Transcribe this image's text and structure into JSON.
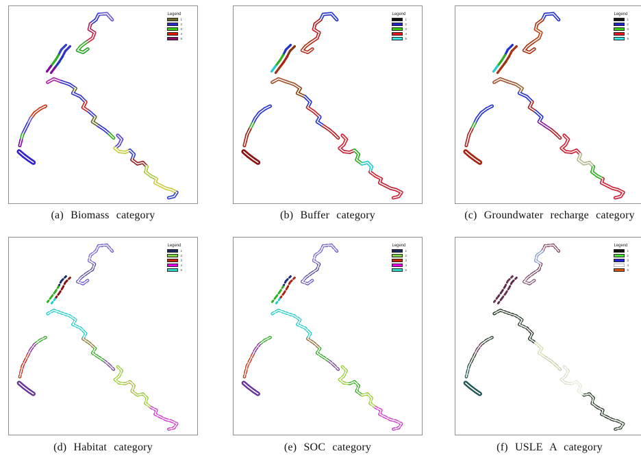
{
  "figure": {
    "panels": [
      {
        "id": "a",
        "caption": "(a) Biomass category",
        "legend": {
          "title": "Legend",
          "entries": [
            {
              "color": "#6b682a",
              "label": "1"
            },
            {
              "color": "#2a2acc",
              "label": "2"
            },
            {
              "color": "#33cc00",
              "label": "3"
            },
            {
              "color": "#ee1100",
              "label": "4"
            },
            {
              "color": "#8e0e63",
              "label": "5"
            }
          ]
        },
        "style": {
          "corridor_width": 5,
          "core_width": 1.6,
          "dash": "5 2",
          "tail_width": 7,
          "bank_width": 3.4
        },
        "streams": {
          "north": [
            "#6a5acd",
            "#3333cc",
            "#aa2255",
            "#cc2244",
            "#2fae22",
            "#27a322"
          ],
          "nw_left": [
            "#3344cc",
            "#2fae22",
            "#2fae22",
            "#7a0f9e"
          ],
          "nw_right": [
            "#3333cc",
            "#2233bb",
            "#7a0f9e"
          ],
          "central": [
            "#aa22aa",
            "#3333cc",
            "#6b6b23",
            "#3333cc",
            "#cc2222",
            "#3333cc",
            "#6b6b23",
            "#3333cc",
            "#2fae22"
          ],
          "west": [
            "#cc3311",
            "#cc3311",
            "#6a5acd",
            "#3333cc",
            "#2fae22",
            "#8800aa"
          ],
          "west_tail": [
            "#3322cc"
          ],
          "se": [
            "#5544cc",
            "#cccc44",
            "#3344cc",
            "#992222",
            "#aacc44",
            "#cccc44",
            "#cccc44",
            "#3344cc"
          ]
        }
      },
      {
        "id": "b",
        "caption": "(b) Buffer category",
        "legend": {
          "title": "Legend",
          "entries": [
            {
              "color": "#111111",
              "label": "1"
            },
            {
              "color": "#2222cc",
              "label": "2"
            },
            {
              "color": "#33cc00",
              "label": "3"
            },
            {
              "color": "#ee1122",
              "label": "4"
            },
            {
              "color": "#33e6e6",
              "label": "5"
            }
          ]
        },
        "style": {
          "corridor_width": 5,
          "core_width": 1.6,
          "dash": "5 2",
          "tail_width": 7,
          "bank_width": 3.4
        },
        "streams": {
          "north": [
            "#2233cc",
            "#aa2222",
            "#bb2222",
            "#aa3311",
            "#bb3322"
          ],
          "nw_left": [
            "#2233cc",
            "#2fae22",
            "#22cccc"
          ],
          "nw_right": [
            "#8a3311",
            "#aa2211",
            "#993311"
          ],
          "central": [
            "#a0522d",
            "#a0522d",
            "#8a4411",
            "#2233cc",
            "#bb2222",
            "#2233cc",
            "#bb2222",
            "#aa2222"
          ],
          "west": [
            "#2233cc",
            "#2233cc",
            "#2fae22",
            "#992211",
            "#aa2211"
          ],
          "west_tail": [
            "#8b1111"
          ],
          "se": [
            "#cc2233",
            "#bb2233",
            "#2fae22",
            "#22cccc",
            "#cc2233",
            "#bb2233",
            "#cc2233"
          ]
        }
      },
      {
        "id": "c",
        "caption": "(c) Groundwater recharge category",
        "legend": {
          "title": "Legend",
          "entries": [
            {
              "color": "#111111",
              "label": "1"
            },
            {
              "color": "#2222cc",
              "label": "2"
            },
            {
              "color": "#33cc00",
              "label": "3"
            },
            {
              "color": "#ee1122",
              "label": "4"
            },
            {
              "color": "#33e6e6",
              "label": "5"
            }
          ]
        },
        "style": {
          "corridor_width": 5,
          "core_width": 1.6,
          "dash": "5 2",
          "tail_width": 7,
          "bank_width": 3.4
        },
        "streams": {
          "north": [
            "#2233cc",
            "#aa3311",
            "#bb4411",
            "#aa3311",
            "#aa3311"
          ],
          "nw_left": [
            "#2233cc",
            "#2fae22",
            "#22cccc"
          ],
          "nw_right": [
            "#aa3311",
            "#993311",
            "#aa3311"
          ],
          "central": [
            "#a0522d",
            "#996633",
            "#2233cc",
            "#aa2222",
            "#2233cc",
            "#882299",
            "#aa2222"
          ],
          "west": [
            "#2233cc",
            "#2233cc",
            "#2fae22",
            "#aa2222",
            "#aa2222"
          ],
          "west_tail": [
            "#aa2211"
          ],
          "se": [
            "#cc2233",
            "#cc2233",
            "#b8b890",
            "#2fae22",
            "#cc2233",
            "#cc2233"
          ]
        }
      },
      {
        "id": "d",
        "caption": "(d) Habitat category",
        "legend": {
          "title": "Legend",
          "entries": [
            {
              "color": "#1a2a5e",
              "label": "1"
            },
            {
              "color": "#7ed63e",
              "label": "2"
            },
            {
              "color": "#cc2200",
              "label": "3"
            },
            {
              "color": "#ee00ee",
              "label": "4"
            },
            {
              "color": "#2ad6c6",
              "label": "5"
            }
          ]
        },
        "style": {
          "corridor_width": 4.5,
          "core_width": 1.7,
          "dash": "2.5 3.5",
          "tail_width": 6.5,
          "bank_width": 3
        },
        "streams": {
          "north": [
            "#6a5acd",
            "#7a6ad0",
            "#5a4a9d",
            "#6a5acd"
          ],
          "nw_left": [
            "#1a2a6e",
            "#2fae22",
            "#2fae22"
          ],
          "nw_right": [
            "#8b1111",
            "#8b1111",
            "#22cccc"
          ],
          "central": [
            "#22cccc",
            "#33cccc",
            "#22cccc",
            "#8a7733",
            "#2fae22",
            "#7a4499"
          ],
          "west": [
            "#2fae22",
            "#882299",
            "#cc3322",
            "#cc2211",
            "#bb3322"
          ],
          "west_tail": [
            "#663399"
          ],
          "se": [
            "#99cc33",
            "#a8b844",
            "#99cc33",
            "#cc33cc",
            "#cc33cc"
          ]
        }
      },
      {
        "id": "e",
        "caption": "(e) SOC category",
        "legend": {
          "title": "Legend",
          "entries": [
            {
              "color": "#1a2a5e",
              "label": "1"
            },
            {
              "color": "#7ed63e",
              "label": "2"
            },
            {
              "color": "#cc2200",
              "label": "3"
            },
            {
              "color": "#ee00ee",
              "label": "4"
            },
            {
              "color": "#2ad6c6",
              "label": "5"
            }
          ]
        },
        "style": {
          "corridor_width": 4.5,
          "core_width": 1.7,
          "dash": "2.5 3.5",
          "tail_width": 6.5,
          "bank_width": 3
        },
        "streams": {
          "north": [
            "#6a5acd",
            "#7a6ad0",
            "#5a4a9d",
            "#6a5acd"
          ],
          "nw_left": [
            "#1a2a7e",
            "#2fae22",
            "#2fae22"
          ],
          "nw_right": [
            "#aa2211",
            "#aa2211",
            "#22cccc"
          ],
          "central": [
            "#22cccc",
            "#33cccc",
            "#22cccc",
            "#996633",
            "#2fae22",
            "#7a4499"
          ],
          "west": [
            "#2fae22",
            "#882299",
            "#cc3311",
            "#cc3311",
            "#bb3322"
          ],
          "west_tail": [
            "#663399"
          ],
          "se": [
            "#99cc33",
            "#2fae22",
            "#99cc33",
            "#cc33cc",
            "#cc33cc"
          ]
        }
      },
      {
        "id": "f",
        "caption": "(f) USLE A category",
        "legend": {
          "title": "Legend",
          "entries": [
            {
              "color": "#111111",
              "label": "1"
            },
            {
              "color": "#44e633",
              "label": "2"
            },
            {
              "color": "#2222dd",
              "label": "3"
            },
            {
              "color": "#ffffff",
              "label": "4"
            },
            {
              "color": "#d85500",
              "label": "5"
            }
          ]
        },
        "style": {
          "corridor_width": 4.5,
          "core_width": 1.7,
          "dash": "2.5 3.5",
          "tail_width": 6.5,
          "bank_width": 3
        },
        "streams": {
          "north": [
            "#8a4466",
            "#8899cc",
            "#7a4466",
            "#8a5577"
          ],
          "nw_left": [
            "#663355",
            "#5a2a4a",
            "#663355"
          ],
          "nw_right": [
            "#5a2a4a",
            "#663355",
            "#5a2a4a"
          ],
          "central": [
            "#223322",
            "#334433",
            "#223322",
            "#d8d8b0",
            "#ccccaa"
          ],
          "west": [
            "#334433",
            "#663355",
            "#334433",
            "#2a5a55"
          ],
          "west_tail": [
            "#225555"
          ],
          "se": [
            "#ddddcc",
            "#e8e8d8",
            "#334433",
            "#223322",
            "#334433"
          ]
        }
      }
    ]
  },
  "map_geometry": {
    "north": [
      [
        152,
        20
      ],
      [
        144,
        11
      ],
      [
        132,
        12
      ],
      [
        128,
        20
      ],
      [
        120,
        26
      ],
      [
        118,
        34
      ],
      [
        126,
        39
      ],
      [
        123,
        47
      ],
      [
        114,
        53
      ],
      [
        106,
        59
      ],
      [
        101,
        65
      ],
      [
        109,
        68
      ],
      [
        116,
        63
      ]
    ],
    "nw_left": [
      [
        84,
        57
      ],
      [
        77,
        64
      ],
      [
        73,
        72
      ],
      [
        68,
        80
      ],
      [
        62,
        88
      ],
      [
        56,
        96
      ]
    ],
    "nw_right": [
      [
        90,
        59
      ],
      [
        83,
        66
      ],
      [
        79,
        74
      ],
      [
        74,
        82
      ],
      [
        68,
        90
      ],
      [
        62,
        98
      ]
    ],
    "central": [
      [
        57,
        112
      ],
      [
        66,
        107
      ],
      [
        77,
        111
      ],
      [
        89,
        115
      ],
      [
        98,
        121
      ],
      [
        94,
        128
      ],
      [
        105,
        133
      ],
      [
        113,
        141
      ],
      [
        109,
        149
      ],
      [
        118,
        155
      ],
      [
        127,
        163
      ],
      [
        123,
        170
      ],
      [
        132,
        176
      ],
      [
        141,
        182
      ],
      [
        148,
        188
      ],
      [
        154,
        194
      ]
    ],
    "west": [
      [
        54,
        147
      ],
      [
        46,
        151
      ],
      [
        38,
        157
      ],
      [
        32,
        165
      ],
      [
        28,
        173
      ],
      [
        24,
        181
      ],
      [
        20,
        189
      ],
      [
        18,
        197
      ],
      [
        16,
        205
      ]
    ],
    "west_tail": [
      [
        15,
        214
      ],
      [
        22,
        220
      ],
      [
        30,
        226
      ],
      [
        36,
        230
      ]
    ],
    "se": [
      [
        160,
        190
      ],
      [
        166,
        196
      ],
      [
        162,
        204
      ],
      [
        156,
        209
      ],
      [
        162,
        214
      ],
      [
        171,
        215
      ],
      [
        178,
        212
      ],
      [
        184,
        218
      ],
      [
        181,
        226
      ],
      [
        189,
        232
      ],
      [
        197,
        230
      ],
      [
        203,
        236
      ],
      [
        201,
        244
      ],
      [
        209,
        250
      ],
      [
        217,
        254
      ],
      [
        215,
        260
      ],
      [
        223,
        264
      ],
      [
        231,
        268
      ],
      [
        239,
        270
      ],
      [
        247,
        274
      ],
      [
        243,
        280
      ],
      [
        235,
        282
      ]
    ]
  }
}
